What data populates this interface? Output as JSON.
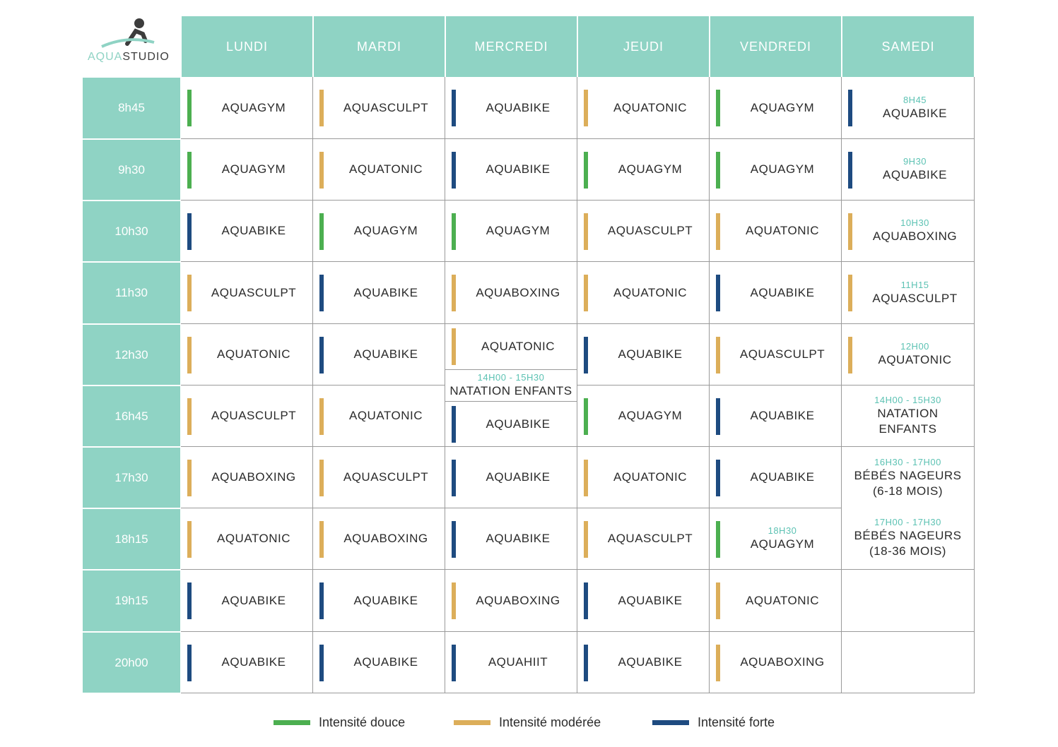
{
  "brand": {
    "aqua": "AQUA",
    "studio": "STUDIO",
    "icon": "swimmer-logo-icon"
  },
  "colors": {
    "header": "#8fd3c4",
    "douce": "#4caf50",
    "moderee": "#dcae5a",
    "forte": "#1e4b80",
    "accent_time": "#5cc2b3"
  },
  "days": [
    "LUNDI",
    "MARDI",
    "MERCREDI",
    "JEUDI",
    "VENDREDI",
    "SAMEDI"
  ],
  "times": [
    "8h45",
    "9h30",
    "10h30",
    "11h30",
    "12h30",
    "16h45",
    "17h30",
    "18h15",
    "19h15",
    "20h00"
  ],
  "schedule": [
    [
      {
        "name": "AQUAGYM",
        "level": "douce"
      },
      {
        "name": "AQUASCULPT",
        "level": "moderee"
      },
      {
        "name": "AQUABIKE",
        "level": "forte"
      },
      {
        "name": "AQUATONIC",
        "level": "moderee"
      },
      {
        "name": "AQUAGYM",
        "level": "douce"
      },
      {
        "name": "AQUABIKE",
        "level": "forte",
        "time": "8H45"
      }
    ],
    [
      {
        "name": "AQUAGYM",
        "level": "douce"
      },
      {
        "name": "AQUATONIC",
        "level": "moderee"
      },
      {
        "name": "AQUABIKE",
        "level": "forte"
      },
      {
        "name": "AQUAGYM",
        "level": "douce"
      },
      {
        "name": "AQUAGYM",
        "level": "douce"
      },
      {
        "name": "AQUABIKE",
        "level": "forte",
        "time": "9H30"
      }
    ],
    [
      {
        "name": "AQUABIKE",
        "level": "forte"
      },
      {
        "name": "AQUAGYM",
        "level": "douce"
      },
      {
        "name": "AQUAGYM",
        "level": "douce"
      },
      {
        "name": "AQUASCULPT",
        "level": "moderee"
      },
      {
        "name": "AQUATONIC",
        "level": "moderee"
      },
      {
        "name": "AQUABOXING",
        "level": "moderee",
        "time": "10H30"
      }
    ],
    [
      {
        "name": "AQUASCULPT",
        "level": "moderee"
      },
      {
        "name": "AQUABIKE",
        "level": "forte"
      },
      {
        "name": "AQUABOXING",
        "level": "moderee"
      },
      {
        "name": "AQUATONIC",
        "level": "moderee"
      },
      {
        "name": "AQUABIKE",
        "level": "forte"
      },
      {
        "name": "AQUASCULPT",
        "level": "moderee",
        "time": "11H15"
      }
    ],
    [
      {
        "name": "AQUATONIC",
        "level": "moderee"
      },
      {
        "name": "AQUABIKE",
        "level": "forte"
      },
      {
        "name": "AQUATONIC",
        "level": "moderee"
      },
      {
        "name": "AQUABIKE",
        "level": "forte"
      },
      {
        "name": "AQUASCULPT",
        "level": "moderee"
      },
      {
        "name": "AQUATONIC",
        "level": "moderee",
        "time": "12H00"
      }
    ],
    [
      {
        "name": "AQUASCULPT",
        "level": "moderee"
      },
      {
        "name": "AQUATONIC",
        "level": "moderee"
      },
      {
        "name": "AQUABIKE",
        "level": "forte"
      },
      {
        "name": "AQUAGYM",
        "level": "douce"
      },
      {
        "name": "AQUABIKE",
        "level": "forte"
      },
      {
        "name": "NATATION",
        "name2": "ENFANTS",
        "time": "14H00 - 15H30"
      }
    ],
    [
      {
        "name": "AQUABOXING",
        "level": "moderee"
      },
      {
        "name": "AQUASCULPT",
        "level": "moderee"
      },
      {
        "name": "AQUABIKE",
        "level": "forte"
      },
      {
        "name": "AQUATONIC",
        "level": "moderee"
      },
      {
        "name": "AQUABIKE",
        "level": "forte"
      },
      {
        "name": "BÉBÉS NAGEURS",
        "name2": "(6-18 MOIS)",
        "time": "16H30 - 17H00"
      }
    ],
    [
      {
        "name": "AQUATONIC",
        "level": "moderee"
      },
      {
        "name": "AQUABOXING",
        "level": "moderee"
      },
      {
        "name": "AQUABIKE",
        "level": "forte"
      },
      {
        "name": "AQUASCULPT",
        "level": "moderee"
      },
      {
        "name": "AQUAGYM",
        "level": "douce",
        "time": "18H30"
      },
      {
        "name": "BÉBÉS NAGEURS",
        "name2": "(18-36 MOIS)",
        "time": "17H00 - 17H30"
      }
    ],
    [
      {
        "name": "AQUABIKE",
        "level": "forte"
      },
      {
        "name": "AQUABIKE",
        "level": "forte"
      },
      {
        "name": "AQUABOXING",
        "level": "moderee"
      },
      {
        "name": "AQUABIKE",
        "level": "forte"
      },
      {
        "name": "AQUATONIC",
        "level": "moderee"
      },
      null
    ],
    [
      {
        "name": "AQUABIKE",
        "level": "forte"
      },
      {
        "name": "AQUABIKE",
        "level": "forte"
      },
      {
        "name": "AQUAHIIT",
        "level": "forte"
      },
      {
        "name": "AQUABIKE",
        "level": "forte"
      },
      {
        "name": "AQUABOXING",
        "level": "moderee"
      },
      null
    ]
  ],
  "mercredi_midday": {
    "time": "14H00 - 15H30",
    "name": "NATATION ENFANTS"
  },
  "legend": [
    {
      "label": "Intensité douce",
      "level": "douce"
    },
    {
      "label": "Intensité modérée",
      "level": "moderee"
    },
    {
      "label": "Intensité forte",
      "level": "forte"
    }
  ]
}
